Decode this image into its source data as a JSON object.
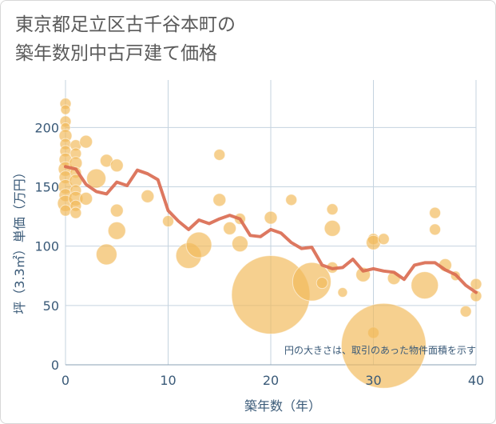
{
  "title": {
    "line1": "東京都足立区古千谷本町の",
    "line2": "築年数別中古戸建て価格"
  },
  "note": "円の大きさは、取引のあった物件面積を示す",
  "colors": {
    "bubble": "#f2b95a",
    "line": "#d9694f",
    "grid": "#c5d3df",
    "axis_text": "#3a5a78"
  },
  "chart_data": {
    "type": "scatter",
    "xlabel": "築年数（年）",
    "ylabel": "坪（3.3㎡）単価（万円）",
    "xlim": [
      0,
      40
    ],
    "ylim": [
      0,
      240
    ],
    "xticks": [
      0,
      10,
      20,
      30,
      40
    ],
    "yticks": [
      0,
      50,
      100,
      150,
      200
    ],
    "grid": true,
    "bubbles": [
      {
        "x": 0,
        "y": 220,
        "r": 7
      },
      {
        "x": 0,
        "y": 215,
        "r": 6
      },
      {
        "x": 0,
        "y": 205,
        "r": 7
      },
      {
        "x": 0,
        "y": 200,
        "r": 6
      },
      {
        "x": 0,
        "y": 193,
        "r": 8
      },
      {
        "x": 0,
        "y": 186,
        "r": 7
      },
      {
        "x": 0,
        "y": 180,
        "r": 7
      },
      {
        "x": 0,
        "y": 173,
        "r": 8
      },
      {
        "x": 0,
        "y": 165,
        "r": 9
      },
      {
        "x": 0,
        "y": 158,
        "r": 8
      },
      {
        "x": 0,
        "y": 150,
        "r": 9
      },
      {
        "x": 0,
        "y": 143,
        "r": 8
      },
      {
        "x": 0,
        "y": 136,
        "r": 10
      },
      {
        "x": 0,
        "y": 130,
        "r": 7
      },
      {
        "x": 1,
        "y": 185,
        "r": 7
      },
      {
        "x": 1,
        "y": 178,
        "r": 7
      },
      {
        "x": 1,
        "y": 170,
        "r": 8
      },
      {
        "x": 1,
        "y": 162,
        "r": 7
      },
      {
        "x": 1,
        "y": 155,
        "r": 8
      },
      {
        "x": 1,
        "y": 147,
        "r": 7
      },
      {
        "x": 1,
        "y": 140,
        "r": 9
      },
      {
        "x": 1,
        "y": 134,
        "r": 7
      },
      {
        "x": 1,
        "y": 128,
        "r": 7
      },
      {
        "x": 2,
        "y": 188,
        "r": 8
      },
      {
        "x": 2,
        "y": 140,
        "r": 8
      },
      {
        "x": 3,
        "y": 157,
        "r": 12
      },
      {
        "x": 4,
        "y": 172,
        "r": 8
      },
      {
        "x": 4,
        "y": 93,
        "r": 13
      },
      {
        "x": 5,
        "y": 168,
        "r": 8
      },
      {
        "x": 5,
        "y": 130,
        "r": 8
      },
      {
        "x": 5,
        "y": 113,
        "r": 11
      },
      {
        "x": 8,
        "y": 142,
        "r": 8
      },
      {
        "x": 10,
        "y": 121,
        "r": 7
      },
      {
        "x": 12,
        "y": 92,
        "r": 16
      },
      {
        "x": 13,
        "y": 101,
        "r": 16
      },
      {
        "x": 15,
        "y": 177,
        "r": 7
      },
      {
        "x": 15,
        "y": 139,
        "r": 8
      },
      {
        "x": 16,
        "y": 115,
        "r": 8
      },
      {
        "x": 17,
        "y": 123,
        "r": 7
      },
      {
        "x": 17,
        "y": 102,
        "r": 10
      },
      {
        "x": 20,
        "y": 124,
        "r": 8
      },
      {
        "x": 20,
        "y": 59,
        "r": 49
      },
      {
        "x": 22,
        "y": 139,
        "r": 7
      },
      {
        "x": 24,
        "y": 70,
        "r": 24
      },
      {
        "x": 25,
        "y": 69,
        "r": 7
      },
      {
        "x": 26,
        "y": 131,
        "r": 7
      },
      {
        "x": 26,
        "y": 115,
        "r": 10
      },
      {
        "x": 26,
        "y": 82,
        "r": 7
      },
      {
        "x": 27,
        "y": 61,
        "r": 6
      },
      {
        "x": 29,
        "y": 76,
        "r": 9
      },
      {
        "x": 30,
        "y": 106,
        "r": 7
      },
      {
        "x": 30,
        "y": 103,
        "r": 9
      },
      {
        "x": 30,
        "y": 27,
        "r": 7
      },
      {
        "x": 31,
        "y": 106,
        "r": 7
      },
      {
        "x": 31,
        "y": 16,
        "r": 53
      },
      {
        "x": 32,
        "y": 73,
        "r": 8
      },
      {
        "x": 35,
        "y": 67,
        "r": 17
      },
      {
        "x": 36,
        "y": 128,
        "r": 7
      },
      {
        "x": 36,
        "y": 114,
        "r": 7
      },
      {
        "x": 37,
        "y": 84,
        "r": 8
      },
      {
        "x": 38,
        "y": 75,
        "r": 6
      },
      {
        "x": 39,
        "y": 45,
        "r": 7
      },
      {
        "x": 40,
        "y": 68,
        "r": 7
      },
      {
        "x": 40,
        "y": 58,
        "r": 7
      }
    ],
    "trend": {
      "x": [
        0,
        1,
        2,
        3,
        4,
        5,
        6,
        7,
        8,
        9,
        10,
        11,
        12,
        13,
        14,
        15,
        16,
        17,
        18,
        19,
        20,
        21,
        22,
        23,
        24,
        25,
        26,
        27,
        28,
        29,
        30,
        31,
        32,
        33,
        34,
        35,
        36,
        37,
        38,
        39,
        40
      ],
      "y": [
        167,
        165,
        152,
        146,
        144,
        154,
        151,
        164,
        161,
        156,
        130,
        121,
        114,
        122,
        119,
        123,
        126,
        123,
        109,
        108,
        114,
        111,
        103,
        98,
        99,
        84,
        81,
        82,
        89,
        79,
        81,
        79,
        78,
        72,
        84,
        86,
        86,
        80,
        76,
        67,
        61
      ]
    }
  }
}
